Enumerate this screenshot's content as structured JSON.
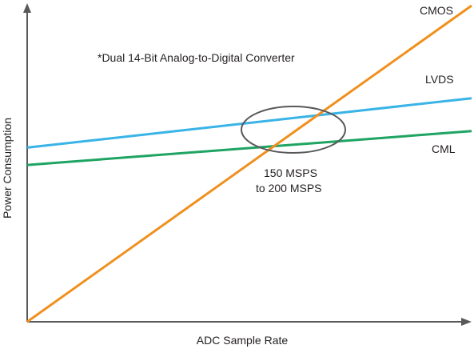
{
  "chart_data": {
    "type": "line",
    "xlabel": "ADC Sample Rate",
    "ylabel": "Power Consumption",
    "xlim": [
      0,
      100
    ],
    "ylim": [
      0,
      100
    ],
    "axis_ticks": false,
    "grid": false,
    "series": [
      {
        "name": "CMOS",
        "color": "#f0901e",
        "x": [
          0,
          100
        ],
        "y": [
          0,
          100
        ]
      },
      {
        "name": "LVDS",
        "color": "#3ab4e6",
        "x": [
          0,
          100
        ],
        "y": [
          55.1,
          70.7
        ]
      },
      {
        "name": "CML",
        "color": "#1fa463",
        "x": [
          0,
          100
        ],
        "y": [
          49.6,
          60.3
        ]
      }
    ],
    "annotations": {
      "note": "*Dual 14-Bit Analog-to-Digital Converter",
      "crossover_line1": "150 MSPS",
      "crossover_line2": "to 200 MSPS"
    }
  },
  "colors": {
    "axis": "#58595b",
    "ellipse": "#58595b",
    "text": "#231f20"
  }
}
